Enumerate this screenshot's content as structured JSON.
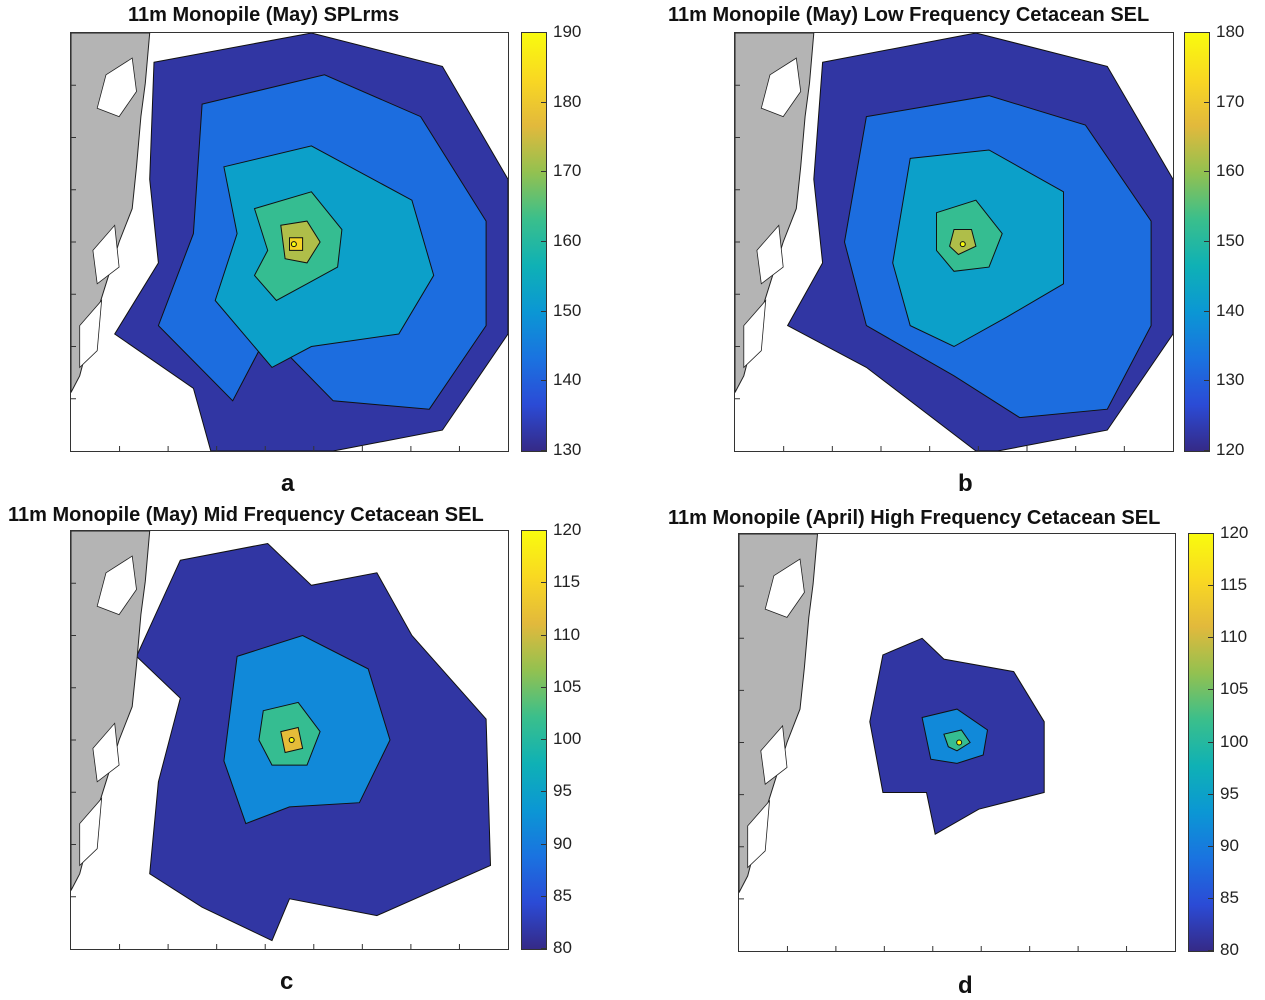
{
  "chart_data": [
    {
      "type": "heatmap",
      "panel": "a",
      "title": "11m Monopile (May) SPLrms",
      "colorbar": {
        "ticks": [
          130,
          140,
          150,
          160,
          170,
          180,
          190
        ],
        "range": [
          130,
          190
        ]
      },
      "contour_levels": [
        130,
        140,
        150,
        160,
        170,
        180
      ]
    },
    {
      "type": "heatmap",
      "panel": "b",
      "title": "11m Monopile (May) Low Frequency Cetacean SEL",
      "colorbar": {
        "ticks": [
          120,
          130,
          140,
          150,
          160,
          170,
          180
        ],
        "range": [
          120,
          180
        ]
      },
      "contour_levels": [
        120,
        130,
        140,
        150,
        160,
        170
      ]
    },
    {
      "type": "heatmap",
      "panel": "c",
      "title": "11m Monopile (May) Mid Frequency Cetacean SEL",
      "colorbar": {
        "ticks": [
          80,
          85,
          90,
          95,
          100,
          105,
          110,
          115,
          120
        ],
        "range": [
          80,
          120
        ]
      },
      "contour_levels": [
        80,
        90,
        100,
        110
      ]
    },
    {
      "type": "heatmap",
      "panel": "d",
      "title": "11m Monopile (April) High Frequency Cetacean SEL",
      "colorbar": {
        "ticks": [
          80,
          85,
          90,
          95,
          100,
          105,
          110,
          115,
          120
        ],
        "range": [
          80,
          120
        ]
      },
      "contour_levels": [
        80,
        90,
        100,
        110
      ]
    }
  ],
  "colors": {
    "land": "#b4b4b4",
    "parula": [
      "#352a87",
      "#2b4bd6",
      "#1a73e0",
      "#0b97d4",
      "#0fb1b5",
      "#3bbf8b",
      "#93c150",
      "#e2b93c",
      "#f9d822",
      "#f9fb0e"
    ]
  }
}
